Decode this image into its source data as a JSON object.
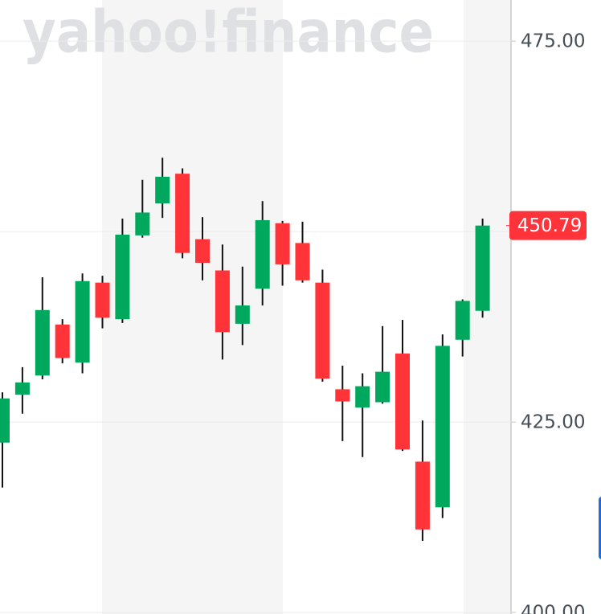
{
  "chart_data": {
    "type": "candlestick",
    "watermark": "yahoo!finance",
    "categories": [
      null,
      null,
      null,
      null,
      null,
      null,
      null,
      null,
      null,
      null,
      null,
      null,
      null,
      null,
      null,
      null,
      null,
      null,
      null,
      null,
      null,
      null,
      null,
      null,
      null
    ],
    "open": [
      422.3,
      428.6,
      431.1,
      437.8,
      432.8,
      443.3,
      438.5,
      449.5,
      453.7,
      457.6,
      449.0,
      444.9,
      437.9,
      442.5,
      451.1,
      448.5,
      443.3,
      429.3,
      426.9,
      427.6,
      434.0,
      419.8,
      413.8,
      435.8,
      439.6
    ],
    "high": [
      428.9,
      432.2,
      444.0,
      438.5,
      444.5,
      444.2,
      451.7,
      456.8,
      459.7,
      458.3,
      451.9,
      448.3,
      445.4,
      454.0,
      451.4,
      451.3,
      445.0,
      432.4,
      431.4,
      437.6,
      438.4,
      425.2,
      436.5,
      441.1,
      451.7
    ],
    "low": [
      416.4,
      426.1,
      430.6,
      432.7,
      431.4,
      437.3,
      438.0,
      449.2,
      451.8,
      446.5,
      443.6,
      433.2,
      435.1,
      440.3,
      442.9,
      443.3,
      430.3,
      422.5,
      420.4,
      427.4,
      421.2,
      409.4,
      412.4,
      433.6,
      438.7
    ],
    "close": [
      428.1,
      430.2,
      439.7,
      433.4,
      443.5,
      438.7,
      449.6,
      452.5,
      457.2,
      447.2,
      445.9,
      436.8,
      440.3,
      451.5,
      445.7,
      443.6,
      430.7,
      427.7,
      429.7,
      431.6,
      421.4,
      410.9,
      435.0,
      440.9,
      450.79
    ],
    "up_color": "#00a85e",
    "down_color": "#ff3338",
    "ylim": [
      399.8,
      480.4
    ],
    "yticks": [
      {
        "value": 400,
        "label": "400.00"
      },
      {
        "value": 425,
        "label": "425.00"
      },
      {
        "value": 450,
        "label": "450.00"
      },
      {
        "value": 475,
        "label": "475.00"
      }
    ],
    "grid": true,
    "last_price": 450.79,
    "last_price_color": "#ff333a"
  }
}
